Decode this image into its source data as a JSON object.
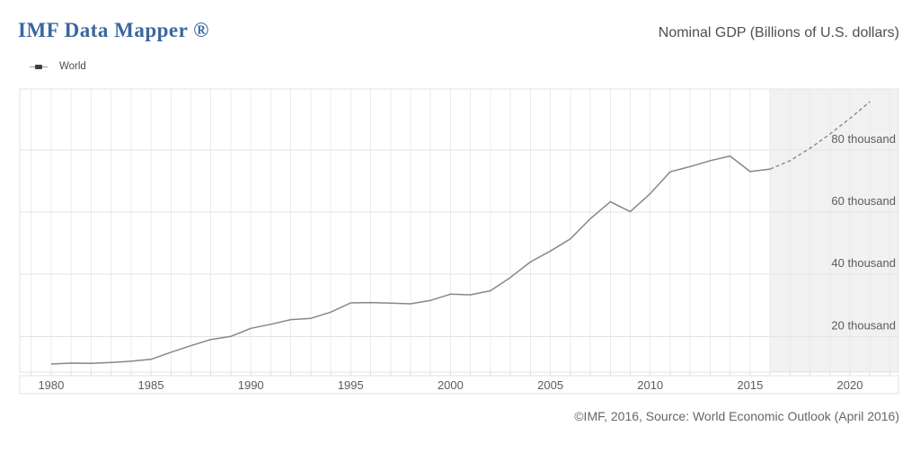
{
  "header": {
    "title": "IMF Data Mapper ®",
    "subtitle": "Nominal GDP (Billions of U.S. dollars)"
  },
  "legend": {
    "series_label": "World"
  },
  "footer": {
    "credit": "©IMF, 2016, Source: World Economic Outlook (April 2016)"
  },
  "colors": {
    "title_blue": "#3a679e",
    "line_gray": "#878787",
    "forecast_dash_gray": "#8a8a8a",
    "forecast_band": "#f1f1f1",
    "grid_vertical": "#ebebeb",
    "grid_horizontal": "#e3e3e3",
    "plot_border": "#e3e3e3",
    "axis_strip_border": "#e2e2e2",
    "tick_color": "#dddddd",
    "axis_text": "#5c5c5c"
  },
  "chart_data": {
    "type": "line",
    "title": "Nominal GDP (Billions of U.S. dollars)",
    "xlabel": "",
    "ylabel": "Billions of U.S. dollars",
    "grid": true,
    "legend_position": "top-left",
    "xlim": [
      1978.43,
      2022.43
    ],
    "ylim": [
      8500,
      99700
    ],
    "x_tick_years": [
      1980,
      1985,
      1990,
      1995,
      2000,
      2005,
      2010,
      2015,
      2020
    ],
    "y_ticks": [
      {
        "value": 20000,
        "label": "20 thousand"
      },
      {
        "value": 40000,
        "label": "40 thousand"
      },
      {
        "value": 60000,
        "label": "60 thousand"
      },
      {
        "value": 80000,
        "label": "80 thousand"
      }
    ],
    "grid_year_step": 1,
    "forecast_start_year": 2016,
    "series": [
      {
        "name": "World",
        "x": [
          1980,
          1981,
          1982,
          1983,
          1984,
          1985,
          1986,
          1987,
          1988,
          1989,
          1990,
          1991,
          1992,
          1993,
          1994,
          1995,
          1996,
          1997,
          1998,
          1999,
          2000,
          2001,
          2002,
          2003,
          2004,
          2005,
          2006,
          2007,
          2008,
          2009,
          2010,
          2011,
          2012,
          2013,
          2014,
          2015,
          2016,
          2017,
          2018,
          2019,
          2020,
          2021
        ],
        "values": [
          11100,
          11400,
          11300,
          11600,
          12000,
          12600,
          14900,
          17000,
          19000,
          20000,
          22600,
          23900,
          25400,
          25800,
          27800,
          30800,
          30900,
          30700,
          30500,
          31600,
          33600,
          33400,
          34700,
          39000,
          44000,
          47500,
          51400,
          57900,
          63400,
          60200,
          66000,
          73000,
          74700,
          76600,
          78100,
          73100,
          73900,
          76600,
          80600,
          85200,
          90200,
          95600
        ]
      }
    ]
  }
}
